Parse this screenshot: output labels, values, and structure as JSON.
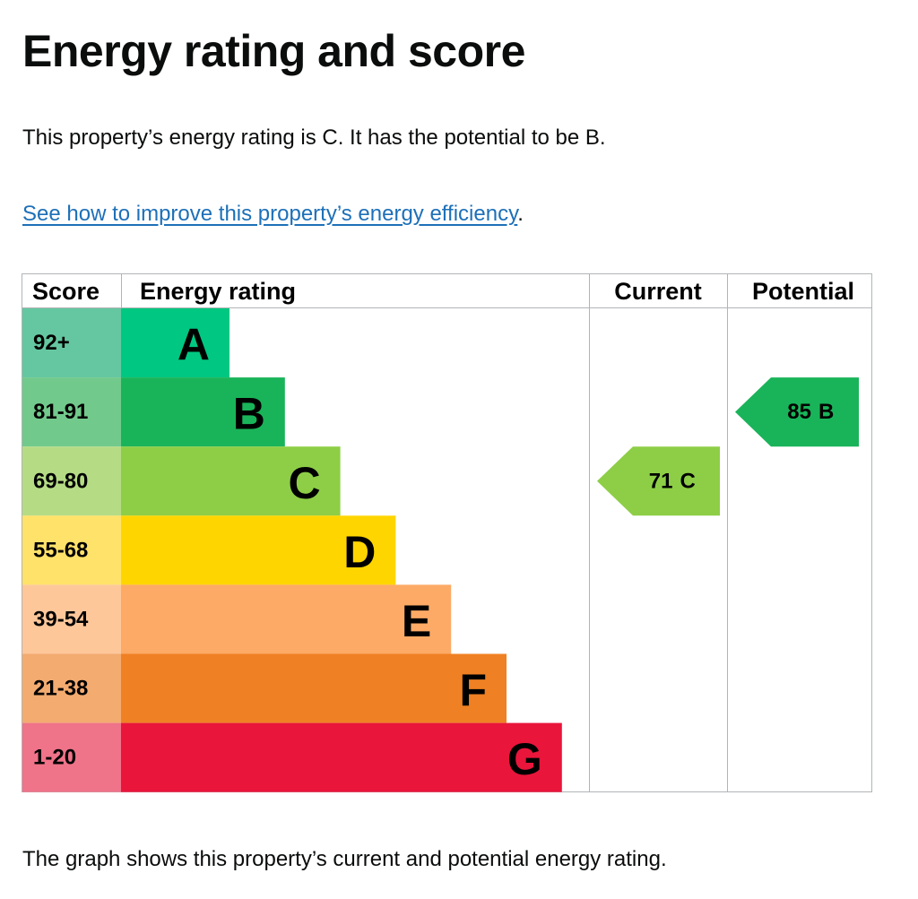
{
  "heading": "Energy rating and score",
  "intro": "This property’s energy rating is C. It has the potential to be B.",
  "link": {
    "text": "See how to improve this property’s energy efficiency",
    "after": "."
  },
  "table": {
    "headers": [
      "Score",
      "Energy rating",
      "Current",
      "Potential"
    ],
    "rows": [
      {
        "score": "92+",
        "rating": "A"
      },
      {
        "score": "81-91",
        "rating": "B"
      },
      {
        "score": "69-80",
        "rating": "C"
      },
      {
        "score": "55-68",
        "rating": "D"
      },
      {
        "score": "39-54",
        "rating": "E"
      },
      {
        "score": "21-38",
        "rating": "F"
      },
      {
        "score": "1-20",
        "rating": "G"
      }
    ],
    "current": {
      "score": 71,
      "rating": "C"
    },
    "potential": {
      "score": 85,
      "rating": "B"
    }
  },
  "footer": "The graph shows this property’s current and potential energy rating."
}
